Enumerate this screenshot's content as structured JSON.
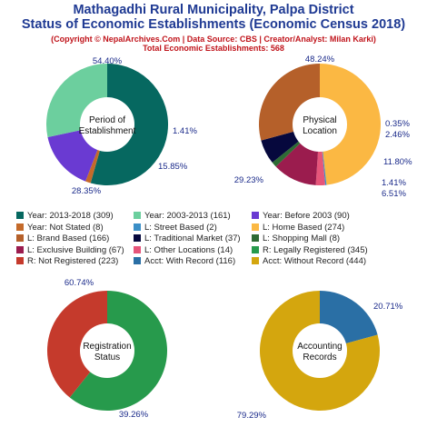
{
  "header": {
    "title_line1": "Mathagadhi Rural Municipality, Palpa District",
    "title_line2": "Status of Economic Establishments (Economic Census 2018)",
    "subtitle_line1": "(Copyright © NepalArchives.Com | Data Source: CBS | Creator/Analyst: Milan Karki)",
    "subtitle_line2": "Total Economic Establishments: 568"
  },
  "chart_data": [
    {
      "type": "pie",
      "title": "Period of Establishment",
      "title_lines": [
        "Period of",
        "Establishment"
      ],
      "slices": [
        {
          "label": "Year: 2013-2018",
          "value": 309,
          "percent": 54.4,
          "percent_label": "54.40%",
          "color": "#066860"
        },
        {
          "label": "Year: Not Stated",
          "value": 8,
          "percent": 1.41,
          "percent_label": "1.41%",
          "color": "#c46a2a"
        },
        {
          "label": "Year: Before 2003",
          "value": 90,
          "percent": 15.85,
          "percent_label": "15.85%",
          "color": "#6a3ad2"
        },
        {
          "label": "Year: 2003-2013",
          "value": 161,
          "percent": 28.35,
          "percent_label": "28.35%",
          "color": "#6ccf9e"
        }
      ]
    },
    {
      "type": "pie",
      "title": "Physical Location",
      "title_lines": [
        "Physical",
        "Location"
      ],
      "slices": [
        {
          "label": "L: Home Based",
          "value": 274,
          "percent": 48.24,
          "percent_label": "48.24%",
          "color": "#fbb843"
        },
        {
          "label": "L: Street Based",
          "value": 2,
          "percent": 0.35,
          "percent_label": "0.35%",
          "color": "#3b8fc7"
        },
        {
          "label": "L: Other Locations",
          "value": 14,
          "percent": 2.46,
          "percent_label": "2.46%",
          "color": "#e6557a"
        },
        {
          "label": "L: Exclusive Building",
          "value": 67,
          "percent": 11.8,
          "percent_label": "11.80%",
          "color": "#9b1c4e"
        },
        {
          "label": "L: Shopping Mall",
          "value": 8,
          "percent": 1.41,
          "percent_label": "1.41%",
          "color": "#2e6b34"
        },
        {
          "label": "L: Traditional Market",
          "value": 37,
          "percent": 6.51,
          "percent_label": "6.51%",
          "color": "#06083d"
        },
        {
          "label": "L: Brand Based",
          "value": 166,
          "percent": 29.23,
          "percent_label": "29.23%",
          "color": "#b5602a"
        }
      ]
    },
    {
      "type": "pie",
      "title": "Registration Status",
      "title_lines": [
        "Registration",
        "Status"
      ],
      "slices": [
        {
          "label": "R: Legally Registered",
          "value": 345,
          "percent": 60.74,
          "percent_label": "60.74%",
          "color": "#279a4c"
        },
        {
          "label": "R: Not Registered",
          "value": 223,
          "percent": 39.26,
          "percent_label": "39.26%",
          "color": "#c53a2c"
        }
      ]
    },
    {
      "type": "pie",
      "title": "Accounting Records",
      "title_lines": [
        "Accounting",
        "Records"
      ],
      "slices": [
        {
          "label": "Acct: With Record",
          "value": 116,
          "percent": 20.71,
          "percent_label": "20.71%",
          "color": "#2a6fa5"
        },
        {
          "label": "Acct: Without Record",
          "value": 444,
          "percent": 79.29,
          "percent_label": "79.29%",
          "color": "#d4a60e"
        }
      ]
    }
  ],
  "legend": [
    {
      "text": "Year: 2013-2018 (309)",
      "color": "#066860"
    },
    {
      "text": "Year: 2003-2013 (161)",
      "color": "#6ccf9e"
    },
    {
      "text": "Year: Before 2003 (90)",
      "color": "#6a3ad2"
    },
    {
      "text": "Year: Not Stated (8)",
      "color": "#c46a2a"
    },
    {
      "text": "L: Street Based (2)",
      "color": "#3b8fc7"
    },
    {
      "text": "L: Home Based (274)",
      "color": "#fbb843"
    },
    {
      "text": "L: Brand Based (166)",
      "color": "#b5602a"
    },
    {
      "text": "L: Traditional Market (37)",
      "color": "#06083d"
    },
    {
      "text": "L: Shopping Mall (8)",
      "color": "#2e6b34"
    },
    {
      "text": "L: Exclusive Building (67)",
      "color": "#9b1c4e"
    },
    {
      "text": "L: Other Locations (14)",
      "color": "#e6557a"
    },
    {
      "text": "R: Legally Registered (345)",
      "color": "#279a4c"
    },
    {
      "text": "R: Not Registered (223)",
      "color": "#c53a2c"
    },
    {
      "text": "Acct: With Record (116)",
      "color": "#2a6fa5"
    },
    {
      "text": "Acct: Without Record (444)",
      "color": "#d4a60e"
    }
  ]
}
